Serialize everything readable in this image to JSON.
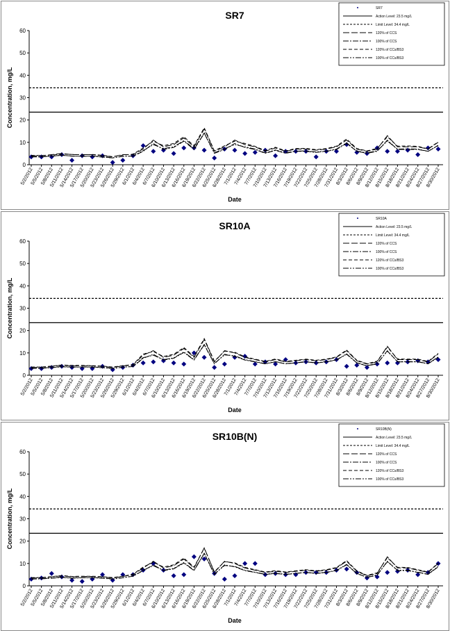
{
  "chart_data": [
    {
      "type": "line",
      "title": "SR7",
      "x_label": "Date",
      "y_label": "Concentration, mg/L",
      "categories": [
        "5/2/2012",
        "5/5/2012",
        "5/8/2012",
        "5/11/2012",
        "5/14/2012",
        "5/17/2012",
        "5/20/2012",
        "5/23/2012",
        "5/26/2012",
        "5/29/2012",
        "6/1/2012",
        "6/4/2012",
        "6/7/2012",
        "6/10/2012",
        "6/13/2012",
        "6/16/2012",
        "6/19/2012",
        "6/22/2012",
        "6/25/2012",
        "6/28/2012",
        "7/1/2012",
        "7/4/2012",
        "7/7/2012",
        "7/10/2012",
        "7/13/2012",
        "7/16/2012",
        "7/19/2012",
        "7/22/2012",
        "7/25/2012",
        "7/28/2012",
        "7/31/2012",
        "8/3/2012",
        "8/6/2012",
        "8/9/2012",
        "8/12/2012",
        "8/15/2012",
        "8/18/2012",
        "8/21/2012",
        "8/24/2012",
        "8/27/2012",
        "8/30/2012"
      ],
      "ylim": [
        0,
        60
      ],
      "yticks": [
        0,
        10,
        20,
        30,
        40,
        50,
        60
      ],
      "reference_lines": [
        {
          "name": "Action Level: 23.5 mg/L",
          "value": 23.5,
          "color": "#000000",
          "line_style": "solid"
        },
        {
          "name": "Limit Level: 34.4 mg/L",
          "value": 34.4,
          "color": "#000000",
          "line_style": "dashed"
        }
      ],
      "series": [
        {
          "name": "SR7",
          "color": "#000080",
          "marker": "diamond",
          "values": [
            3.5,
            3.5,
            3.5,
            4.5,
            2,
            4,
            3.5,
            4,
            1,
            2,
            4,
            8.5,
            6,
            6.5,
            5,
            7.5,
            7.5,
            6.5,
            3,
            7,
            6.5,
            5,
            5.5,
            6.5,
            4,
            6,
            6,
            6,
            3.5,
            6,
            6,
            9,
            5.5,
            5,
            7.5,
            6,
            6,
            6.5,
            4.5,
            7.5,
            7
          ]
        },
        {
          "name": "120% of CCS",
          "color": "#000000",
          "line_style": "long-dash",
          "values": [
            4,
            4,
            4.5,
            5,
            4.5,
            4.5,
            4.5,
            4,
            3.5,
            4.5,
            4.5,
            7,
            11,
            8,
            9,
            12,
            8,
            16,
            6,
            8,
            11,
            9,
            8,
            6,
            7.5,
            6,
            7,
            7,
            6.5,
            7,
            8,
            11,
            7,
            6,
            7,
            13,
            8,
            8,
            8,
            7,
            10
          ]
        },
        {
          "name": "100% of CCS",
          "color": "#000000",
          "line_style": "dash-dot",
          "values": [
            3.5,
            3.5,
            3.8,
            4.3,
            3.8,
            3.8,
            3.8,
            3.4,
            3,
            3.8,
            3.8,
            6,
            9.5,
            6.8,
            7.7,
            10.5,
            6.8,
            14,
            5.1,
            6.8,
            9.5,
            7.7,
            6.8,
            5.1,
            6.4,
            5.1,
            6,
            6,
            5.5,
            6,
            6.8,
            9.5,
            6,
            5.1,
            6,
            11,
            6.8,
            6.8,
            6.8,
            6,
            8.5
          ]
        },
        {
          "name": "120% of CCs/BS3",
          "color": "#000000",
          "line_style": "medium-dash",
          "values": [
            4.2,
            4.1,
            4.3,
            4.8,
            4.6,
            4.4,
            4.6,
            4.2,
            3.6,
            4.3,
            4.7,
            7.5,
            10.5,
            8.5,
            9.5,
            12.5,
            8.5,
            16.5,
            6.2,
            8.5,
            10.5,
            9.5,
            8.2,
            6.3,
            7.8,
            6.2,
            7.2,
            7.3,
            6.7,
            7.2,
            8.3,
            11.5,
            7.2,
            6.2,
            7.3,
            12.5,
            8.3,
            8.4,
            8.2,
            7.1,
            10.2
          ]
        },
        {
          "name": "100% of CCs/BS3",
          "color": "#000000",
          "line_style": "dash-dot-dot",
          "values": [
            3.6,
            3.6,
            3.9,
            4.2,
            3.9,
            3.7,
            3.9,
            3.5,
            3.1,
            3.7,
            3.9,
            6.3,
            9,
            7.2,
            8,
            10.8,
            7.2,
            14.2,
            5.3,
            7.2,
            9,
            8,
            7,
            5.3,
            6.6,
            5.3,
            6.1,
            6.2,
            5.7,
            6.1,
            7,
            9.8,
            6.1,
            5.3,
            6.2,
            10.6,
            7,
            7.1,
            7,
            6,
            8.7
          ]
        }
      ]
    },
    {
      "type": "line",
      "title": "SR10A",
      "x_label": "Date",
      "y_label": "Concentration, mg/L",
      "categories": [
        "5/2/2012",
        "5/5/2012",
        "5/8/2012",
        "5/11/2012",
        "5/14/2012",
        "5/17/2012",
        "5/20/2012",
        "5/23/2012",
        "5/26/2012",
        "5/29/2012",
        "6/1/2012",
        "6/4/2012",
        "6/7/2012",
        "6/10/2012",
        "6/13/2012",
        "6/16/2012",
        "6/19/2012",
        "6/22/2012",
        "6/25/2012",
        "6/28/2012",
        "7/1/2012",
        "7/4/2012",
        "7/7/2012",
        "7/10/2012",
        "7/13/2012",
        "7/16/2012",
        "7/19/2012",
        "7/22/2012",
        "7/25/2012",
        "7/28/2012",
        "7/31/2012",
        "8/3/2012",
        "8/6/2012",
        "8/9/2012",
        "8/12/2012",
        "8/15/2012",
        "8/18/2012",
        "8/21/2012",
        "8/24/2012",
        "8/27/2012",
        "8/30/2012"
      ],
      "ylim": [
        0,
        60
      ],
      "yticks": [
        0,
        10,
        20,
        30,
        40,
        50,
        60
      ],
      "reference_lines": [
        {
          "name": "Action Level: 23.5 mg/L",
          "value": 23.5,
          "color": "#000000",
          "line_style": "solid"
        },
        {
          "name": "Limit Level: 34.4 mg/L",
          "value": 34.4,
          "color": "#000000",
          "line_style": "dashed"
        }
      ],
      "series": [
        {
          "name": "SR10A",
          "color": "#000080",
          "marker": "diamond",
          "values": [
            3,
            3,
            3.5,
            4,
            3.5,
            3,
            3,
            4,
            2.5,
            3.5,
            4.5,
            5.5,
            6,
            6.5,
            5.5,
            5,
            10,
            8,
            3.5,
            5,
            8,
            8.5,
            5,
            6,
            5,
            7,
            5.5,
            6,
            5.5,
            6,
            7,
            4,
            4.5,
            3.5,
            5,
            5.5,
            5.5,
            6,
            6.5,
            6,
            7
          ]
        },
        {
          "name": "120% of CCS",
          "color": "#000000",
          "line_style": "long-dash",
          "values": [
            3.5,
            3.6,
            4,
            4.5,
            4.2,
            4.3,
            4.2,
            4,
            3.5,
            4.2,
            4.6,
            9,
            11,
            8,
            9,
            12,
            8,
            16,
            6,
            11,
            10,
            8,
            7,
            6,
            7,
            6,
            6.5,
            7,
            6.5,
            7,
            8,
            11,
            6.5,
            5,
            6,
            13,
            7,
            7,
            7,
            6,
            9.5
          ]
        },
        {
          "name": "100% of CCS",
          "color": "#000000",
          "line_style": "dash-dot",
          "values": [
            3,
            3.1,
            3.4,
            3.8,
            3.6,
            3.7,
            3.6,
            3.4,
            3,
            3.6,
            3.9,
            7.6,
            9.4,
            6.8,
            7.6,
            10.2,
            6.8,
            13.6,
            5.1,
            9.4,
            8.5,
            6.8,
            6,
            5.1,
            6,
            5.1,
            5.5,
            6,
            5.5,
            6,
            6.8,
            9.4,
            5.5,
            4.2,
            5.1,
            11,
            6,
            6,
            6,
            5.1,
            8
          ]
        },
        {
          "name": "120% of CCs/BS3",
          "color": "#000000",
          "line_style": "medium-dash",
          "values": [
            3.7,
            3.7,
            4.1,
            4.6,
            4.4,
            4.4,
            4.3,
            4.1,
            3.7,
            4.3,
            4.8,
            9.5,
            10.6,
            8.4,
            9.4,
            12.4,
            8.4,
            16.4,
            6.3,
            10.8,
            10.3,
            8.3,
            7.2,
            6.2,
            7.3,
            6.2,
            6.7,
            7.2,
            6.7,
            7.2,
            8.2,
            11.3,
            6.7,
            5.2,
            6.3,
            12.6,
            7.3,
            7.2,
            7.2,
            6.2,
            9.8
          ]
        },
        {
          "name": "100% of CCs/BS3",
          "color": "#000000",
          "line_style": "dash-dot-dot",
          "values": [
            3.1,
            3.2,
            3.5,
            3.9,
            3.7,
            3.7,
            3.7,
            3.5,
            3.1,
            3.6,
            4,
            7.9,
            9,
            7,
            7.8,
            10.4,
            7,
            13.8,
            5.3,
            9.1,
            8.7,
            7,
            6.1,
            5.2,
            6.1,
            5.2,
            5.6,
            6.1,
            5.6,
            6.1,
            6.9,
            9.6,
            5.6,
            4.3,
            5.3,
            10.8,
            6.1,
            6.1,
            6.1,
            5.2,
            8.2
          ]
        }
      ]
    },
    {
      "type": "line",
      "title": "SR10B(N)",
      "x_label": "Date",
      "y_label": "Concentration, mg/L",
      "categories": [
        "5/2/2012",
        "5/5/2012",
        "5/8/2012",
        "5/11/2012",
        "5/14/2012",
        "5/17/2012",
        "5/20/2012",
        "5/23/2012",
        "5/26/2012",
        "5/29/2012",
        "6/1/2012",
        "6/4/2012",
        "6/7/2012",
        "6/10/2012",
        "6/13/2012",
        "6/16/2012",
        "6/19/2012",
        "6/22/2012",
        "6/25/2012",
        "6/28/2012",
        "7/1/2012",
        "7/4/2012",
        "7/7/2012",
        "7/10/2012",
        "7/13/2012",
        "7/16/2012",
        "7/19/2012",
        "7/22/2012",
        "7/25/2012",
        "7/28/2012",
        "7/31/2012",
        "8/3/2012",
        "8/6/2012",
        "8/9/2012",
        "8/12/2012",
        "8/15/2012",
        "8/18/2012",
        "8/21/2012",
        "8/24/2012",
        "8/27/2012",
        "8/30/2012"
      ],
      "ylim": [
        0,
        60
      ],
      "yticks": [
        0,
        10,
        20,
        30,
        40,
        50,
        60
      ],
      "reference_lines": [
        {
          "name": "Action Level: 23.5 mg/L",
          "value": 23.5,
          "color": "#000000",
          "line_style": "solid"
        },
        {
          "name": "Limit Level: 34.4 mg/L",
          "value": 34.4,
          "color": "#000000",
          "line_style": "dashed"
        }
      ],
      "series": [
        {
          "name": "SR10B(N)",
          "color": "#000080",
          "marker": "diamond",
          "values": [
            3,
            3.5,
            5.5,
            4,
            2.5,
            2,
            3,
            5,
            2.5,
            5,
            5,
            7,
            10,
            7,
            4.5,
            5,
            13,
            12,
            5.5,
            3,
            4.5,
            10,
            10,
            5,
            5.5,
            5,
            5,
            6,
            6,
            6,
            7,
            7.5,
            6,
            3.5,
            4,
            6,
            6.5,
            7,
            5,
            6,
            10
          ]
        },
        {
          "name": "120% of CCS",
          "color": "#000000",
          "line_style": "long-dash",
          "values": [
            3.5,
            3.6,
            4,
            4.5,
            4,
            4.2,
            4.2,
            4,
            3.5,
            4.2,
            5,
            8,
            11,
            8,
            9,
            12,
            8,
            17,
            6,
            11,
            10,
            8,
            7,
            6,
            6.5,
            6,
            6.5,
            7,
            6.5,
            7,
            8,
            11,
            6.5,
            4.5,
            5.5,
            13,
            8,
            8,
            7,
            6,
            10
          ]
        },
        {
          "name": "100% of CCS",
          "color": "#000000",
          "line_style": "dash-dot",
          "values": [
            3,
            3.1,
            3.4,
            3.8,
            3.4,
            3.6,
            3.6,
            3.4,
            3,
            3.6,
            4.3,
            6.8,
            9.4,
            6.8,
            7.6,
            10.2,
            6.8,
            14.4,
            5.1,
            9.4,
            8.5,
            6.8,
            6,
            5.1,
            5.5,
            5.1,
            5.5,
            6,
            5.5,
            6,
            6.8,
            9.4,
            5.5,
            3.8,
            4.7,
            11,
            6.8,
            6.8,
            6,
            5.1,
            8.5
          ]
        },
        {
          "name": "120% of CCs/BS3",
          "color": "#000000",
          "line_style": "medium-dash",
          "values": [
            3.7,
            3.7,
            4.1,
            4.6,
            4.2,
            4.3,
            4.3,
            4.1,
            3.7,
            4.3,
            5.2,
            8.4,
            10.6,
            8.4,
            9.4,
            12.4,
            8.4,
            16.8,
            6.3,
            10.8,
            10.3,
            8.3,
            7.2,
            6.2,
            6.8,
            6.2,
            6.7,
            7.2,
            6.7,
            7.2,
            8.2,
            11.3,
            6.7,
            4.7,
            5.8,
            12.6,
            8.3,
            8.2,
            7.2,
            6.2,
            10.2
          ]
        },
        {
          "name": "100% of CCs/BS3",
          "color": "#000000",
          "line_style": "dash-dot-dot",
          "values": [
            3.1,
            3.2,
            3.5,
            3.9,
            3.5,
            3.7,
            3.7,
            3.5,
            3.1,
            3.6,
            4.4,
            7,
            9,
            7,
            7.8,
            10.4,
            7,
            14.6,
            5.3,
            9.1,
            8.7,
            7,
            6.1,
            5.2,
            5.7,
            5.2,
            5.6,
            6.1,
            5.6,
            6.1,
            6.9,
            9.6,
            5.6,
            3.9,
            4.9,
            10.8,
            7,
            7,
            6.1,
            5.2,
            8.7
          ]
        }
      ]
    }
  ]
}
